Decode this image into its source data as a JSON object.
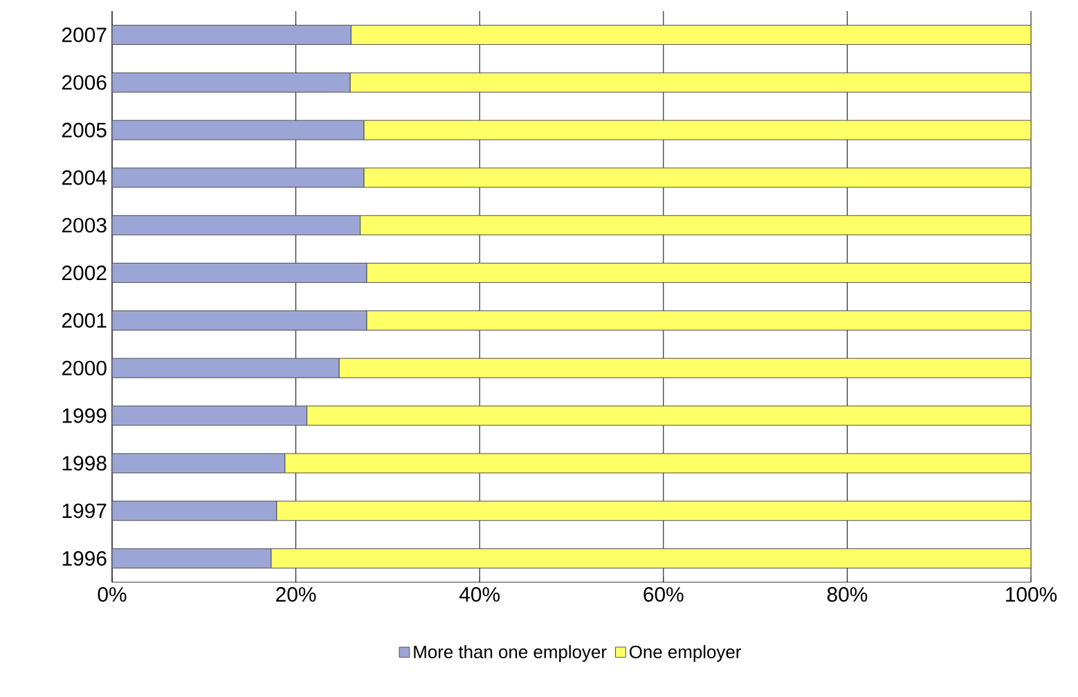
{
  "chart_data": {
    "type": "bar",
    "orientation": "horizontal",
    "stacked": true,
    "categories": [
      "2007",
      "2006",
      "2005",
      "2004",
      "2003",
      "2002",
      "2001",
      "2000",
      "1999",
      "1998",
      "1997",
      "1996"
    ],
    "series": [
      {
        "name": "More than one employer",
        "color": "#9ba6d6",
        "values": [
          26.0,
          25.9,
          27.4,
          27.4,
          27.0,
          27.7,
          27.7,
          24.7,
          21.2,
          18.8,
          17.9,
          17.3
        ]
      },
      {
        "name": "One employer",
        "color": "#ffff66",
        "values": [
          74.0,
          74.1,
          72.6,
          72.6,
          73.0,
          72.3,
          72.3,
          75.3,
          78.8,
          81.2,
          82.1,
          82.7
        ]
      }
    ],
    "xlim": [
      0,
      100
    ],
    "xticks": [
      {
        "value": 0,
        "label": "0%"
      },
      {
        "value": 20,
        "label": "20%"
      },
      {
        "value": 40,
        "label": "40%"
      },
      {
        "value": 60,
        "label": "60%"
      },
      {
        "value": 80,
        "label": "80%"
      },
      {
        "value": 100,
        "label": "100%"
      }
    ],
    "grid": "x",
    "legend": "bottom"
  }
}
